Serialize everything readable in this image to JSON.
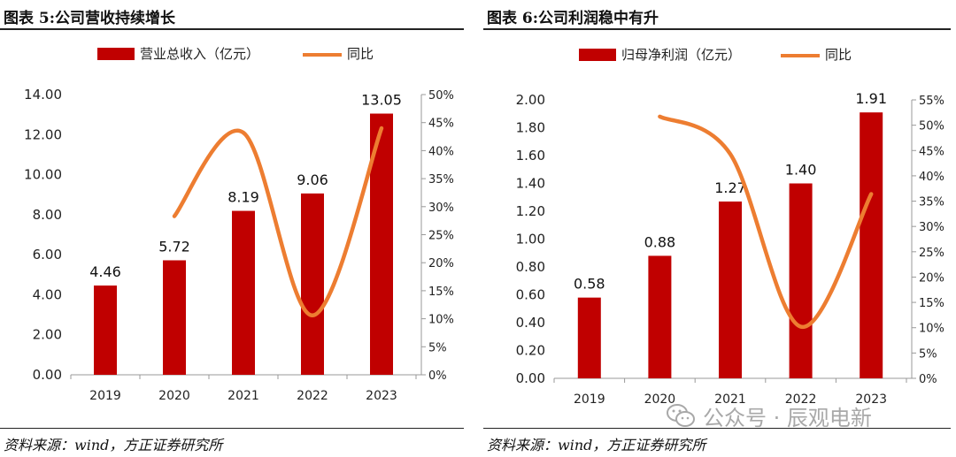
{
  "left": {
    "title": "图表 5:公司营收持续增长",
    "source": "资料来源：wind，方正证券研究所"
  },
  "right": {
    "title": "图表 6:公司利润稳中有升",
    "source": "资料来源：wind，方正证券研究所"
  },
  "watermark": {
    "text": "公众号 · 辰观电新",
    "icon": "wechat-icon"
  },
  "colors": {
    "bar": "#c00000",
    "line": "#ed7d31",
    "axis": "#999999"
  },
  "chart_data": [
    {
      "type": "bar",
      "categories": [
        "2019",
        "2020",
        "2021",
        "2022",
        "2023"
      ],
      "series": [
        {
          "name": "营业总收入（亿元）",
          "type": "bar",
          "axis": "left",
          "values": [
            4.46,
            5.72,
            8.19,
            9.06,
            13.05
          ],
          "labels": [
            "4.46",
            "5.72",
            "8.19",
            "9.06",
            "13.05"
          ]
        },
        {
          "name": "同比",
          "type": "line",
          "axis": "right",
          "values": [
            null,
            28.3,
            43.2,
            10.6,
            44.0
          ]
        }
      ],
      "left_axis": {
        "min": 0,
        "max": 14,
        "step": 2,
        "ticks": [
          "0.00",
          "2.00",
          "4.00",
          "6.00",
          "8.00",
          "10.00",
          "12.00",
          "14.00"
        ]
      },
      "right_axis": {
        "min": 0,
        "max": 50,
        "step": 5,
        "ticks": [
          "0%",
          "5%",
          "10%",
          "15%",
          "20%",
          "25%",
          "30%",
          "35%",
          "40%",
          "45%",
          "50%"
        ]
      },
      "legend": "top"
    },
    {
      "type": "bar",
      "categories": [
        "2019",
        "2020",
        "2021",
        "2022",
        "2023"
      ],
      "series": [
        {
          "name": "归母净利润（亿元）",
          "type": "bar",
          "axis": "left",
          "values": [
            0.58,
            0.88,
            1.27,
            1.4,
            1.91
          ],
          "labels": [
            "0.58",
            "0.88",
            "1.27",
            "1.40",
            "1.91"
          ]
        },
        {
          "name": "同比",
          "type": "line",
          "axis": "right",
          "values": [
            null,
            51.7,
            44.3,
            10.2,
            36.4
          ]
        }
      ],
      "left_axis": {
        "min": 0,
        "max": 2.0,
        "step": 0.2,
        "ticks": [
          "0.00",
          "0.20",
          "0.40",
          "0.60",
          "0.80",
          "1.00",
          "1.20",
          "1.40",
          "1.60",
          "1.80",
          "2.00"
        ]
      },
      "right_axis": {
        "min": 0,
        "max": 55,
        "step": 5,
        "ticks": [
          "0%",
          "5%",
          "10%",
          "15%",
          "20%",
          "25%",
          "30%",
          "35%",
          "40%",
          "45%",
          "50%",
          "55%"
        ]
      },
      "legend": "top"
    }
  ]
}
